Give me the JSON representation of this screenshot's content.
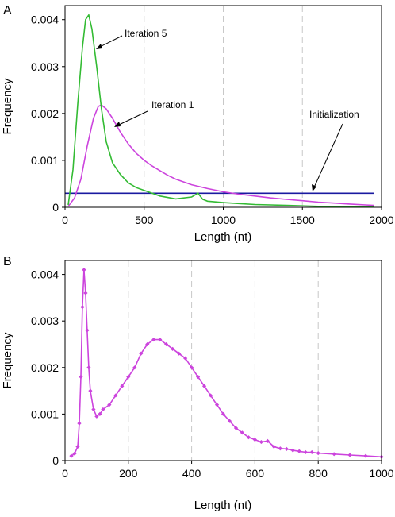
{
  "chart_data": [
    {
      "panel_label": "A",
      "type": "line",
      "xlabel": "Length (nt)",
      "ylabel": "Frequency",
      "xlim": [
        0,
        2000
      ],
      "ylim": [
        0,
        0.0043
      ],
      "xticks": [
        0,
        500,
        1000,
        1500,
        2000
      ],
      "xtick_labels": [
        "0",
        "500",
        "1000",
        "1500",
        "2000"
      ],
      "yticks": [
        0,
        0.001,
        0.002,
        0.003,
        0.004
      ],
      "ytick_labels": [
        "0",
        "0.001",
        "0.002",
        "0.003",
        "0.004"
      ],
      "grid": "vertical dashed",
      "series": [
        {
          "name": "Initialization",
          "color": "#1a1aa0",
          "x": [
            0,
            1950
          ],
          "values": [
            0.0003,
            0.0003
          ]
        },
        {
          "name": "Iteration 1",
          "color": "#cc44dd",
          "x": [
            20,
            60,
            100,
            140,
            180,
            210,
            230,
            260,
            300,
            350,
            400,
            450,
            500,
            550,
            600,
            650,
            700,
            800,
            900,
            1000,
            1100,
            1200,
            1300,
            1400,
            1500,
            1600,
            1700,
            1800,
            1900,
            1950
          ],
          "values": [
            2e-05,
            0.0002,
            0.0006,
            0.0013,
            0.0019,
            0.00215,
            0.00218,
            0.0021,
            0.0019,
            0.0016,
            0.00135,
            0.00115,
            0.001,
            0.00088,
            0.00078,
            0.00068,
            0.0006,
            0.00048,
            0.0004,
            0.00033,
            0.00028,
            0.00024,
            0.0002,
            0.00017,
            0.00014,
            0.00011,
            9e-05,
            7e-05,
            5e-05,
            4e-05
          ]
        },
        {
          "name": "Iteration 5",
          "color": "#33bb33",
          "x": [
            20,
            50,
            80,
            110,
            130,
            150,
            170,
            200,
            230,
            260,
            300,
            350,
            400,
            450,
            500,
            550,
            600,
            700,
            800,
            840,
            870,
            900,
            1000,
            1100,
            1200,
            1300,
            1400,
            1500,
            1600,
            1700,
            1800,
            1900,
            1950
          ],
          "values": [
            5e-05,
            0.0008,
            0.0022,
            0.0034,
            0.004,
            0.0041,
            0.0038,
            0.003,
            0.0021,
            0.0014,
            0.00095,
            0.0007,
            0.00052,
            0.00042,
            0.00036,
            0.0003,
            0.00024,
            0.00018,
            0.00022,
            0.0003,
            0.00017,
            0.00013,
            0.0001,
            8e-05,
            6e-05,
            5e-05,
            4e-05,
            3e-05,
            2e-05,
            2e-05,
            1e-05,
            1e-05,
            1e-05
          ]
        }
      ],
      "annotations": [
        {
          "text": "Iteration 5"
        },
        {
          "text": "Iteration 1"
        },
        {
          "text": "Initialization"
        }
      ]
    },
    {
      "panel_label": "B",
      "type": "line",
      "xlabel": "Length (nt)",
      "ylabel": "Frequency",
      "xlim": [
        0,
        1000
      ],
      "ylim": [
        0,
        0.0043
      ],
      "xticks": [
        0,
        200,
        400,
        600,
        800,
        1000
      ],
      "xtick_labels": [
        "0",
        "200",
        "400",
        "600",
        "800",
        "1000"
      ],
      "yticks": [
        0,
        0.001,
        0.002,
        0.003,
        0.004
      ],
      "ytick_labels": [
        "0",
        "0.001",
        "0.002",
        "0.003",
        "0.004"
      ],
      "grid": "vertical dashed",
      "series": [
        {
          "color": "#cc44dd",
          "markers": "diamond",
          "x": [
            20,
            30,
            40,
            45,
            50,
            55,
            60,
            65,
            70,
            75,
            80,
            90,
            100,
            110,
            120,
            140,
            160,
            180,
            200,
            220,
            240,
            260,
            280,
            300,
            320,
            340,
            360,
            380,
            400,
            420,
            440,
            460,
            480,
            500,
            520,
            540,
            560,
            580,
            600,
            620,
            640,
            660,
            680,
            700,
            720,
            740,
            760,
            780,
            800,
            850,
            900,
            950,
            1000
          ],
          "values": [
            0.0001,
            0.00015,
            0.0003,
            0.0008,
            0.0018,
            0.0033,
            0.0041,
            0.0036,
            0.0028,
            0.002,
            0.0015,
            0.0011,
            0.00095,
            0.001,
            0.0011,
            0.0012,
            0.0014,
            0.0016,
            0.0018,
            0.002,
            0.0023,
            0.0025,
            0.0026,
            0.0026,
            0.0025,
            0.0024,
            0.0023,
            0.0022,
            0.002,
            0.0018,
            0.0016,
            0.0014,
            0.0012,
            0.001,
            0.00085,
            0.0007,
            0.0006,
            0.0005,
            0.00045,
            0.0004,
            0.00042,
            0.0003,
            0.00026,
            0.00025,
            0.00022,
            0.0002,
            0.00018,
            0.00018,
            0.00016,
            0.00014,
            0.00012,
            0.0001,
            8e-05
          ]
        }
      ]
    }
  ]
}
